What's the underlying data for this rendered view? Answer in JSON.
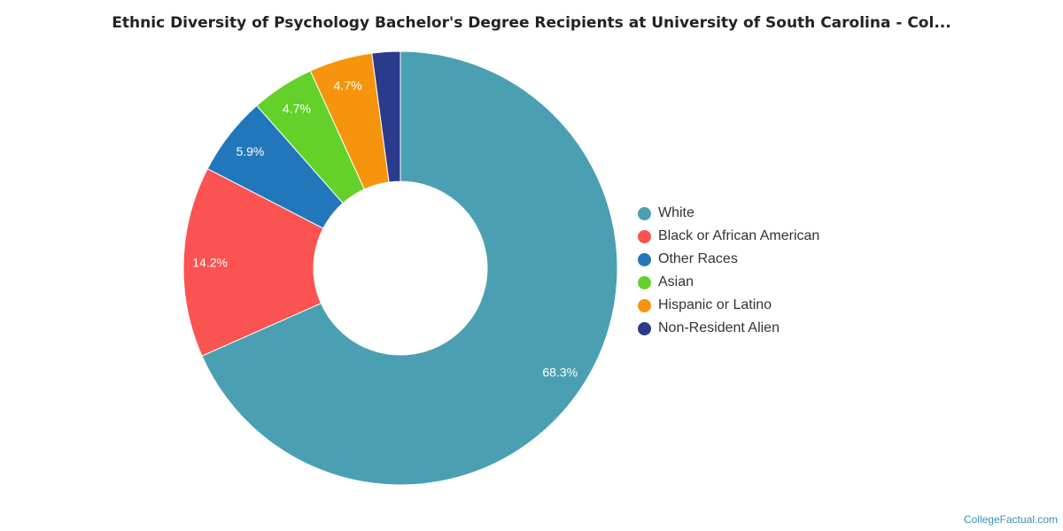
{
  "chart_data": {
    "type": "pie",
    "title": "Ethnic Diversity of Psychology Bachelor's Degree Recipients at University of South Carolina - Col...",
    "donut": true,
    "legend_position": "right",
    "slices": [
      {
        "label": "White",
        "value": 68.3,
        "value_label": "68.3%",
        "color": "#4aa0b2"
      },
      {
        "label": "Black or African American",
        "value": 14.2,
        "value_label": "14.2%",
        "color": "#fb5252"
      },
      {
        "label": "Other Races",
        "value": 5.9,
        "value_label": "5.9%",
        "color": "#2277bb"
      },
      {
        "label": "Asian",
        "value": 4.7,
        "value_label": "4.7%",
        "color": "#63d12a"
      },
      {
        "label": "Hispanic or Latino",
        "value": 4.7,
        "value_label": "4.7%",
        "color": "#f7940d"
      },
      {
        "label": "Non-Resident Alien",
        "value": 2.1,
        "value_label": "",
        "color": "#2a3a8c"
      }
    ]
  },
  "footer": {
    "credit": "CollegeFactual.com"
  }
}
